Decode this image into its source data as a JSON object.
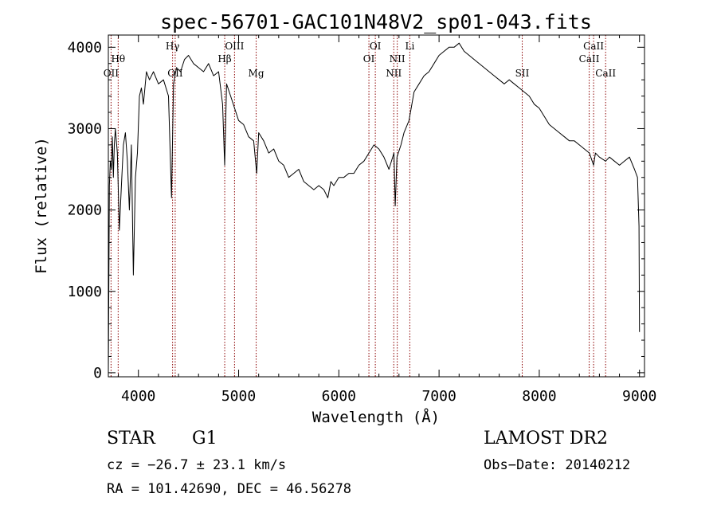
{
  "chart_data": {
    "type": "line",
    "title": "spec-56701-GAC101N48V2_sp01-043.fits",
    "xlabel": "Wavelength (Å)",
    "ylabel": "Flux (relative)",
    "xlim": [
      3700,
      9050
    ],
    "ylim": [
      -50,
      4150
    ],
    "xticks": [
      4000,
      5000,
      6000,
      7000,
      8000,
      9000
    ],
    "yticks": [
      0,
      1000,
      2000,
      3000,
      4000
    ],
    "grid": false,
    "line_color": "#000000",
    "marker_color": "#8b0000",
    "series": [
      {
        "x": [
          3700,
          3710,
          3720,
          3730,
          3740,
          3750,
          3760,
          3770,
          3790,
          3810,
          3830,
          3850,
          3870,
          3890,
          3910,
          3930,
          3950,
          3970,
          3990,
          4010,
          4030,
          4050,
          4080,
          4110,
          4150,
          4200,
          4250,
          4300,
          4330,
          4350,
          4380,
          4420,
          4460,
          4500,
          4550,
          4600,
          4650,
          4700,
          4750,
          4800,
          4840,
          4861,
          4880,
          4920,
          4960,
          5000,
          5050,
          5100,
          5150,
          5180,
          5200,
          5250,
          5300,
          5350,
          5400,
          5450,
          5500,
          5550,
          5600,
          5650,
          5700,
          5750,
          5800,
          5850,
          5890,
          5920,
          5950,
          6000,
          6050,
          6100,
          6150,
          6200,
          6250,
          6300,
          6350,
          6400,
          6450,
          6500,
          6550,
          6563,
          6580,
          6620,
          6650,
          6700,
          6750,
          6800,
          6850,
          6900,
          6950,
          7000,
          7050,
          7100,
          7150,
          7200,
          7250,
          7300,
          7350,
          7400,
          7450,
          7500,
          7550,
          7600,
          7650,
          7700,
          7750,
          7800,
          7850,
          7900,
          7950,
          8000,
          8050,
          8100,
          8150,
          8200,
          8250,
          8300,
          8350,
          8400,
          8450,
          8500,
          8542,
          8560,
          8600,
          8662,
          8700,
          8750,
          8800,
          8850,
          8900,
          8950,
          8980,
          8995,
          9000
        ],
        "y": [
          0,
          2300,
          2600,
          2500,
          2900,
          2400,
          2800,
          3000,
          2700,
          1750,
          2300,
          2800,
          2950,
          2600,
          2000,
          2800,
          1200,
          2400,
          2700,
          3400,
          3500,
          3300,
          3700,
          3600,
          3700,
          3550,
          3600,
          3400,
          2150,
          3550,
          3750,
          3700,
          3850,
          3900,
          3800,
          3750,
          3700,
          3800,
          3650,
          3700,
          3300,
          2550,
          3550,
          3400,
          3250,
          3100,
          3050,
          2900,
          2850,
          2450,
          2950,
          2850,
          2700,
          2750,
          2600,
          2550,
          2400,
          2450,
          2500,
          2350,
          2300,
          2250,
          2300,
          2250,
          2150,
          2350,
          2300,
          2400,
          2400,
          2450,
          2450,
          2550,
          2600,
          2700,
          2800,
          2750,
          2650,
          2500,
          2700,
          2050,
          2650,
          2800,
          2950,
          3100,
          3450,
          3550,
          3650,
          3700,
          3800,
          3900,
          3950,
          4000,
          4000,
          4050,
          3950,
          3900,
          3850,
          3800,
          3750,
          3700,
          3650,
          3600,
          3550,
          3600,
          3550,
          3500,
          3450,
          3400,
          3300,
          3250,
          3150,
          3050,
          3000,
          2950,
          2900,
          2850,
          2850,
          2800,
          2750,
          2700,
          2550,
          2700,
          2650,
          2600,
          2650,
          2600,
          2550,
          2600,
          2650,
          2500,
          2400,
          1800,
          500
        ]
      }
    ],
    "lines": [
      {
        "label": "Hθ",
        "x": 3798,
        "row": 2
      },
      {
        "label": "OII",
        "x": 3727,
        "row": 3
      },
      {
        "label": "Hγ",
        "x": 4341,
        "row": 1
      },
      {
        "label": "OII",
        "x": 4367,
        "row": 3
      },
      {
        "label": "OIII",
        "x": 4959,
        "row": 1
      },
      {
        "label": "Hβ",
        "x": 4861,
        "row": 2
      },
      {
        "label": "Mg",
        "x": 5175,
        "row": 3
      },
      {
        "label": "OI",
        "x": 6364,
        "row": 1
      },
      {
        "label": "OI",
        "x": 6300,
        "row": 2
      },
      {
        "label": "NII",
        "x": 6583,
        "row": 2
      },
      {
        "label": "NII",
        "x": 6548,
        "row": 3
      },
      {
        "label": "Li",
        "x": 6708,
        "row": 1
      },
      {
        "label": "SII",
        "x": 7830,
        "row": 3
      },
      {
        "label": "CaII",
        "x": 8542,
        "row": 1
      },
      {
        "label": "CaII",
        "x": 8498,
        "row": 2
      },
      {
        "label": "CaII",
        "x": 8662,
        "row": 3
      }
    ]
  },
  "info": {
    "object_class": "STAR",
    "subclass": "G1",
    "survey": "LAMOST DR2",
    "cz_line": "cz = −26.7 ± 23.1 km/s",
    "obs_date": "Obs−Date: 20140212",
    "coords": "RA = 101.42690, DEC =  46.56278"
  }
}
